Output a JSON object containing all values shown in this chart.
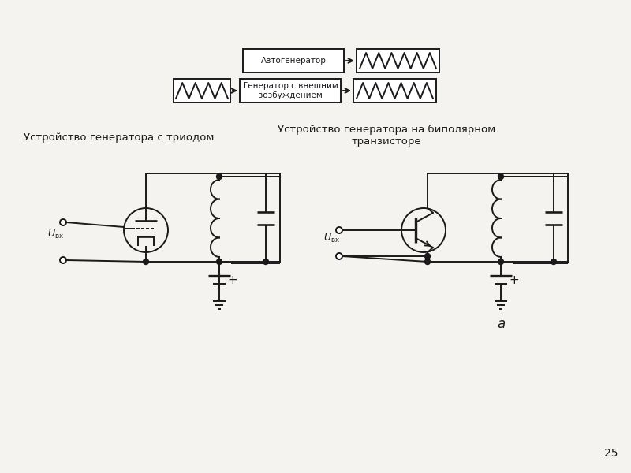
{
  "bg_color": "#f5f3f0",
  "line_color": "#1a1a1a",
  "title1": "Устройство генератора с триодом",
  "title2": "Устройство генератора на биполярном\nтранзисторе",
  "box1_label": "Автогенератор",
  "box2_label": "Генератор с внешним\nвозбуждением",
  "label_a": "а",
  "page_num": "25",
  "lw": 1.4,
  "fig_w": 8.0,
  "fig_h": 6.0
}
